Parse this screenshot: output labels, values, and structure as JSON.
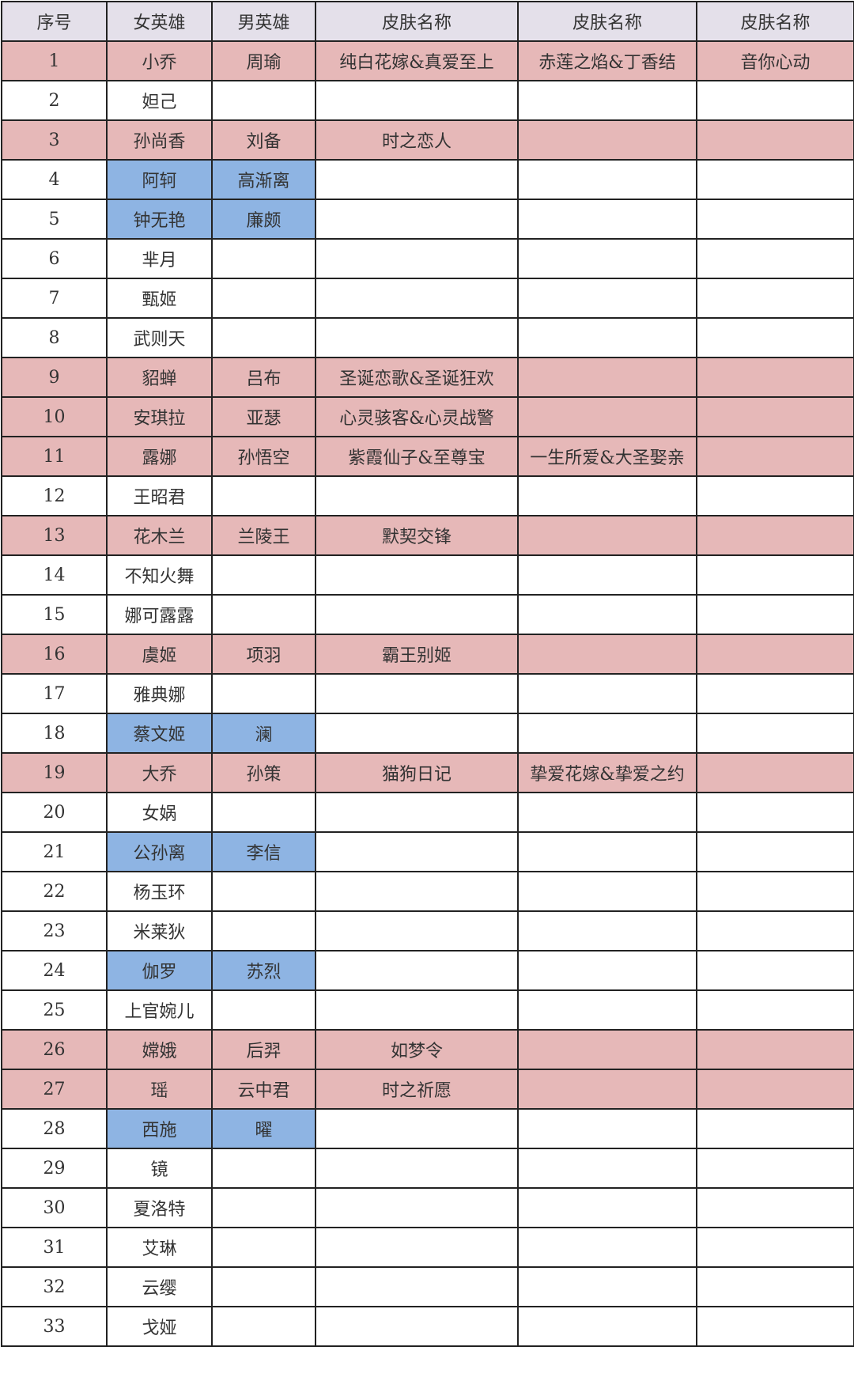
{
  "colors": {
    "header": "#e4e0ea",
    "paired_with_skin": "#e6b8b8",
    "paired_no_skin": "#8eb4e3"
  },
  "headers": [
    "序号",
    "女英雄",
    "男英雄",
    "皮肤名称",
    "皮肤名称",
    "皮肤名称"
  ],
  "rows": [
    {
      "no": "1",
      "female": "小乔",
      "male": "周瑜",
      "skins": [
        "纯白花嫁&真爱至上",
        "赤莲之焰&丁香结",
        "音你心动"
      ],
      "highlight": "pink"
    },
    {
      "no": "2",
      "female": "妲己",
      "male": "",
      "skins": [
        "",
        "",
        ""
      ],
      "highlight": ""
    },
    {
      "no": "3",
      "female": "孙尚香",
      "male": "刘备",
      "skins": [
        "时之恋人",
        "",
        ""
      ],
      "highlight": "pink"
    },
    {
      "no": "4",
      "female": "阿轲",
      "male": "高渐离",
      "skins": [
        "",
        "",
        ""
      ],
      "highlight": "blue"
    },
    {
      "no": "5",
      "female": "钟无艳",
      "male": "廉颇",
      "skins": [
        "",
        "",
        ""
      ],
      "highlight": "blue"
    },
    {
      "no": "6",
      "female": "芈月",
      "male": "",
      "skins": [
        "",
        "",
        ""
      ],
      "highlight": ""
    },
    {
      "no": "7",
      "female": "甄姬",
      "male": "",
      "skins": [
        "",
        "",
        ""
      ],
      "highlight": ""
    },
    {
      "no": "8",
      "female": "武则天",
      "male": "",
      "skins": [
        "",
        "",
        ""
      ],
      "highlight": ""
    },
    {
      "no": "9",
      "female": "貂蝉",
      "male": "吕布",
      "skins": [
        "圣诞恋歌&圣诞狂欢",
        "",
        ""
      ],
      "highlight": "pink"
    },
    {
      "no": "10",
      "female": "安琪拉",
      "male": "亚瑟",
      "skins": [
        "心灵骇客&心灵战警",
        "",
        ""
      ],
      "highlight": "pink"
    },
    {
      "no": "11",
      "female": "露娜",
      "male": "孙悟空",
      "skins": [
        "紫霞仙子&至尊宝",
        "一生所爱&大圣娶亲",
        ""
      ],
      "highlight": "pink"
    },
    {
      "no": "12",
      "female": "王昭君",
      "male": "",
      "skins": [
        "",
        "",
        ""
      ],
      "highlight": ""
    },
    {
      "no": "13",
      "female": "花木兰",
      "male": "兰陵王",
      "skins": [
        "默契交锋",
        "",
        ""
      ],
      "highlight": "pink"
    },
    {
      "no": "14",
      "female": "不知火舞",
      "male": "",
      "skins": [
        "",
        "",
        ""
      ],
      "highlight": ""
    },
    {
      "no": "15",
      "female": "娜可露露",
      "male": "",
      "skins": [
        "",
        "",
        ""
      ],
      "highlight": ""
    },
    {
      "no": "16",
      "female": "虞姬",
      "male": "项羽",
      "skins": [
        "霸王别姬",
        "",
        ""
      ],
      "highlight": "pink"
    },
    {
      "no": "17",
      "female": "雅典娜",
      "male": "",
      "skins": [
        "",
        "",
        ""
      ],
      "highlight": ""
    },
    {
      "no": "18",
      "female": "蔡文姬",
      "male": "澜",
      "skins": [
        "",
        "",
        ""
      ],
      "highlight": "blue"
    },
    {
      "no": "19",
      "female": "大乔",
      "male": "孙策",
      "skins": [
        "猫狗日记",
        "挚爱花嫁&挚爱之约",
        ""
      ],
      "highlight": "pink"
    },
    {
      "no": "20",
      "female": "女娲",
      "male": "",
      "skins": [
        "",
        "",
        ""
      ],
      "highlight": ""
    },
    {
      "no": "21",
      "female": "公孙离",
      "male": "李信",
      "skins": [
        "",
        "",
        ""
      ],
      "highlight": "blue"
    },
    {
      "no": "22",
      "female": "杨玉环",
      "male": "",
      "skins": [
        "",
        "",
        ""
      ],
      "highlight": ""
    },
    {
      "no": "23",
      "female": "米莱狄",
      "male": "",
      "skins": [
        "",
        "",
        ""
      ],
      "highlight": ""
    },
    {
      "no": "24",
      "female": "伽罗",
      "male": "苏烈",
      "skins": [
        "",
        "",
        ""
      ],
      "highlight": "blue"
    },
    {
      "no": "25",
      "female": "上官婉儿",
      "male": "",
      "skins": [
        "",
        "",
        ""
      ],
      "highlight": ""
    },
    {
      "no": "26",
      "female": "嫦娥",
      "male": "后羿",
      "skins": [
        "如梦令",
        "",
        ""
      ],
      "highlight": "pink"
    },
    {
      "no": "27",
      "female": "瑶",
      "male": "云中君",
      "skins": [
        "时之祈愿",
        "",
        ""
      ],
      "highlight": "pink"
    },
    {
      "no": "28",
      "female": "西施",
      "male": "曜",
      "skins": [
        "",
        "",
        ""
      ],
      "highlight": "blue"
    },
    {
      "no": "29",
      "female": "镜",
      "male": "",
      "skins": [
        "",
        "",
        ""
      ],
      "highlight": ""
    },
    {
      "no": "30",
      "female": "夏洛特",
      "male": "",
      "skins": [
        "",
        "",
        ""
      ],
      "highlight": ""
    },
    {
      "no": "31",
      "female": "艾琳",
      "male": "",
      "skins": [
        "",
        "",
        ""
      ],
      "highlight": ""
    },
    {
      "no": "32",
      "female": "云缨",
      "male": "",
      "skins": [
        "",
        "",
        ""
      ],
      "highlight": ""
    },
    {
      "no": "33",
      "female": "戈娅",
      "male": "",
      "skins": [
        "",
        "",
        ""
      ],
      "highlight": ""
    }
  ]
}
